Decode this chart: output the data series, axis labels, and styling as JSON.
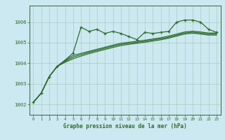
{
  "background_color": "#cce8f0",
  "plot_bg_color": "#cce8f0",
  "grid_color": "#aaccc0",
  "line_color": "#2d6e2d",
  "xlabel": "Graphe pression niveau de la mer (hPa)",
  "ylim": [
    1001.5,
    1006.8
  ],
  "xlim": [
    -0.5,
    23.5
  ],
  "yticks": [
    1002,
    1003,
    1004,
    1005,
    1006
  ],
  "xtick_labels": [
    "0",
    "1",
    "2",
    "3",
    "4",
    "5",
    "6",
    "7",
    "8",
    "9",
    "10",
    "11",
    "12",
    "13",
    "14",
    "15",
    "16",
    "17",
    "18",
    "19",
    "20",
    "21",
    "22",
    "23"
  ],
  "series1_x": [
    0,
    1,
    2,
    3,
    4,
    5,
    6,
    7,
    8,
    9,
    10,
    11,
    12,
    13,
    14,
    15,
    16,
    17,
    18,
    19,
    20,
    21,
    22,
    23
  ],
  "series1_y": [
    1002.1,
    1002.55,
    1003.35,
    1003.85,
    1004.15,
    1004.5,
    1005.75,
    1005.55,
    1005.65,
    1005.45,
    1005.55,
    1005.45,
    1005.3,
    1005.15,
    1005.5,
    1005.45,
    1005.5,
    1005.55,
    1006.0,
    1006.1,
    1006.1,
    1006.0,
    1005.65,
    1005.5
  ],
  "series2_y": [
    1002.1,
    1002.55,
    1003.35,
    1003.85,
    1004.15,
    1004.38,
    1004.48,
    1004.58,
    1004.68,
    1004.78,
    1004.88,
    1004.97,
    1005.02,
    1005.07,
    1005.12,
    1005.18,
    1005.24,
    1005.32,
    1005.42,
    1005.52,
    1005.56,
    1005.52,
    1005.47,
    1005.47
  ],
  "series3_y": [
    1002.1,
    1002.55,
    1003.35,
    1003.85,
    1004.1,
    1004.3,
    1004.42,
    1004.53,
    1004.63,
    1004.73,
    1004.83,
    1004.92,
    1004.97,
    1005.02,
    1005.07,
    1005.13,
    1005.19,
    1005.27,
    1005.37,
    1005.47,
    1005.51,
    1005.47,
    1005.42,
    1005.42
  ],
  "series4_y": [
    1002.1,
    1002.55,
    1003.35,
    1003.85,
    1004.05,
    1004.22,
    1004.35,
    1004.47,
    1004.57,
    1004.67,
    1004.77,
    1004.86,
    1004.92,
    1004.97,
    1005.02,
    1005.08,
    1005.14,
    1005.22,
    1005.32,
    1005.42,
    1005.46,
    1005.42,
    1005.37,
    1005.37
  ]
}
